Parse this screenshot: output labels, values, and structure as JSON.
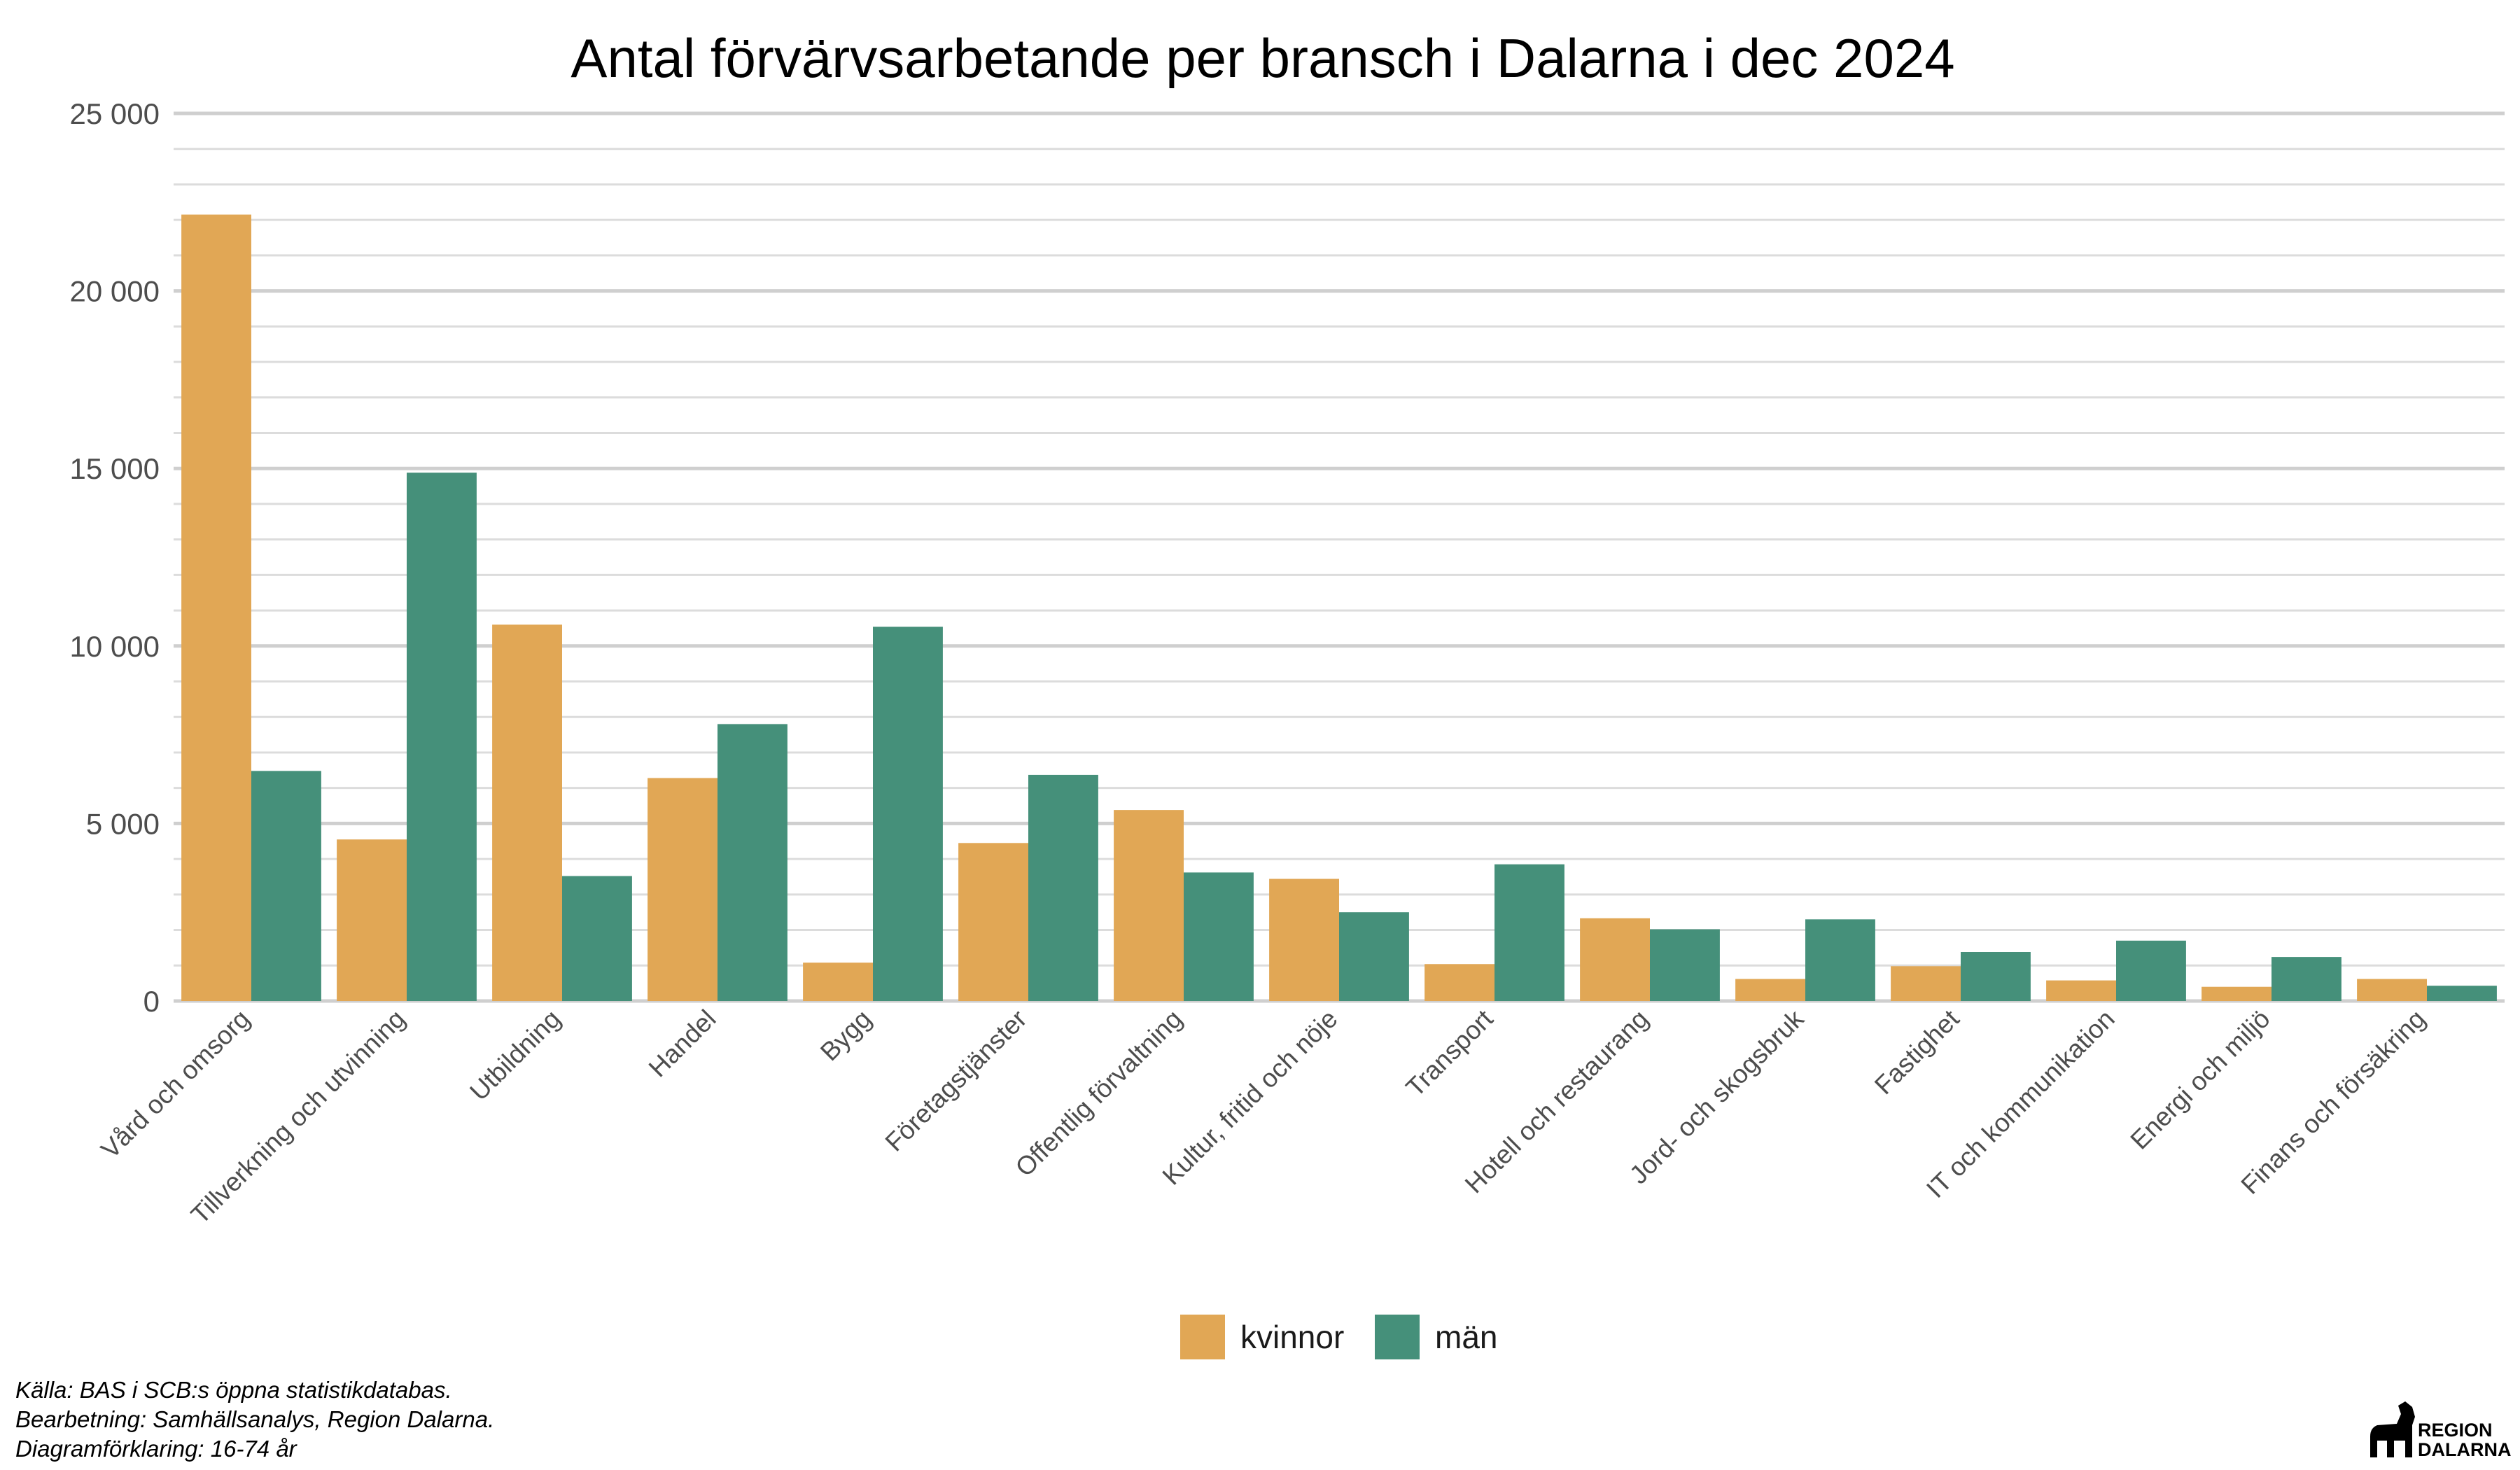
{
  "colors": {
    "kvinnor": "#E1A755",
    "man": "#45907A",
    "grid_major": "#cfcfcf",
    "grid_minor": "#dcdcdc"
  },
  "chart_data": {
    "type": "bar",
    "title": "Antal förvärvsarbetande per bransch i Dalarna i dec 2024",
    "xlabel": "",
    "ylabel": "",
    "ylim": [
      0,
      25000
    ],
    "yticks": [
      0,
      5000,
      10000,
      15000,
      20000,
      25000
    ],
    "ytick_labels": [
      "0",
      "5 000",
      "10 000",
      "15 000",
      "20 000",
      "25 000"
    ],
    "grid": true,
    "legend_position": "bottom",
    "categories": [
      "Vård och omsorg",
      "Tillverkning och utvinning",
      "Utbildning",
      "Handel",
      "Bygg",
      "Företagstjänster",
      "Offentlig förvaltning",
      "Kultur, fritid och nöje",
      "Transport",
      "Hotell och restaurang",
      "Jord- och skogsbruk",
      "Fastighet",
      "IT och kommunikation",
      "Energi och miljö",
      "Finans och försäkring"
    ],
    "series": [
      {
        "name": "kvinnor",
        "values": [
          22150,
          4550,
          10600,
          6280,
          1080,
          4450,
          5380,
          3440,
          1040,
          2330,
          620,
          980,
          580,
          400,
          620
        ]
      },
      {
        "name": "män",
        "values": [
          6480,
          14880,
          3520,
          7800,
          10540,
          6370,
          3620,
          2500,
          3850,
          2020,
          2300,
          1380,
          1700,
          1240,
          430
        ]
      }
    ]
  },
  "caption": {
    "line1": "Källa: BAS i SCB:s öppna statistikdatabas.",
    "line2": "Bearbetning: Samhällsanalys, Region Dalarna.",
    "line3": "Diagramförklaring: 16-74 år"
  },
  "logo": {
    "line1": "REGION",
    "line2": "DALARNA",
    "icon": "dala-horse-icon"
  }
}
